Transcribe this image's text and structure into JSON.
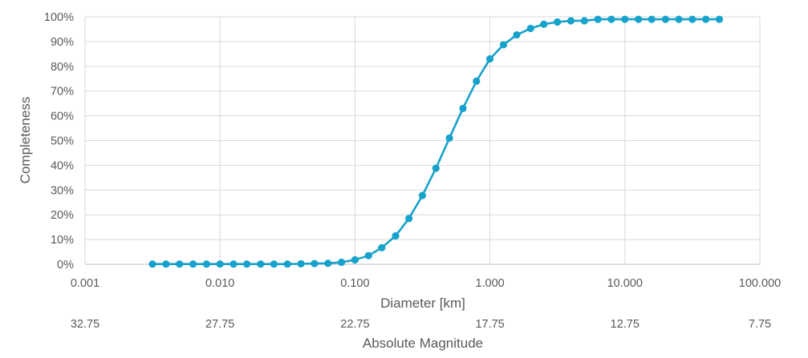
{
  "chart_data": {
    "type": "line",
    "x_scale": "log",
    "xlim": [
      0.001,
      100
    ],
    "ylim": [
      0,
      1
    ],
    "grid": true,
    "legend": "none",
    "color": "#17A2CB",
    "ylabel": "Completeness",
    "xlabel": "Diameter [km]",
    "x2label": "Absolute Magnitude",
    "y_ticks": [
      0,
      0.1,
      0.2,
      0.3,
      0.4,
      0.5,
      0.6,
      0.7,
      0.8,
      0.9,
      1.0
    ],
    "y_tick_labels": [
      "0%",
      "10%",
      "20%",
      "30%",
      "40%",
      "50%",
      "60%",
      "70%",
      "80%",
      "90%",
      "100%"
    ],
    "x_ticks": [
      0.001,
      0.01,
      0.1,
      1,
      10,
      100
    ],
    "x_tick_labels": [
      "0.001",
      "0.010",
      "0.100",
      "1.000",
      "10.000",
      "100.000"
    ],
    "x2_tick_labels": [
      "32.75",
      "27.75",
      "22.75",
      "17.75",
      "12.75",
      "7.75"
    ],
    "series": [
      {
        "x": [
          0.00316,
          0.00398,
          0.00501,
          0.00631,
          0.00794,
          0.01,
          0.0126,
          0.0158,
          0.02,
          0.0251,
          0.0316,
          0.0398,
          0.0501,
          0.0631,
          0.0794,
          0.1,
          0.126,
          0.158,
          0.2,
          0.251,
          0.316,
          0.398,
          0.501,
          0.631,
          0.794,
          1.0,
          1.26,
          1.58,
          2.0,
          2.51,
          3.16,
          3.98,
          5.01,
          6.31,
          7.94,
          10.0,
          12.6,
          15.8,
          20.0,
          25.1,
          31.6,
          39.8,
          50.1
        ],
        "y": [
          0.001,
          0.001,
          0.001,
          0.001,
          0.001,
          0.001,
          0.001,
          0.001,
          0.001,
          0.001,
          0.001,
          0.002,
          0.003,
          0.004,
          0.008,
          0.018,
          0.035,
          0.067,
          0.115,
          0.185,
          0.278,
          0.388,
          0.51,
          0.63,
          0.74,
          0.83,
          0.887,
          0.927,
          0.953,
          0.97,
          0.979,
          0.984,
          0.984,
          0.99,
          0.99,
          0.99,
          0.99,
          0.99,
          0.99,
          0.99,
          0.99,
          0.99,
          0.99
        ]
      }
    ]
  }
}
